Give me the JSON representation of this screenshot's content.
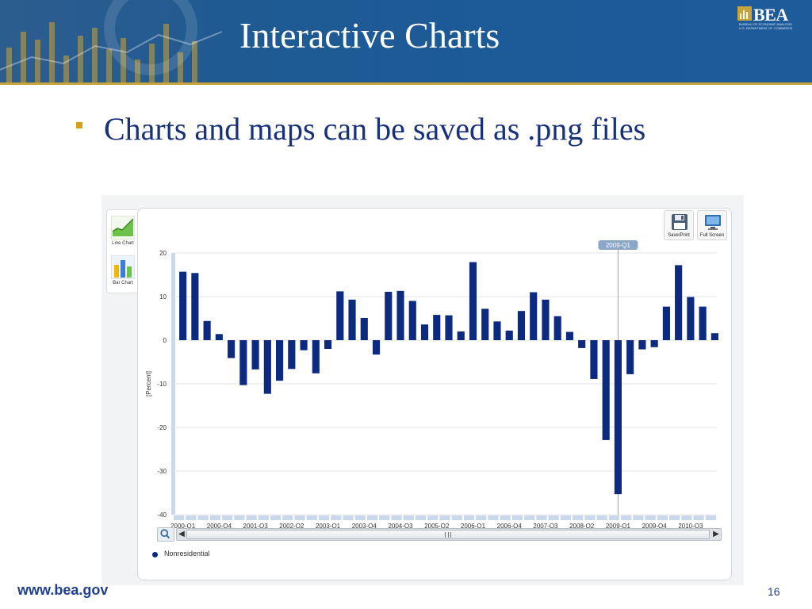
{
  "slide": {
    "title": "Interactive Charts",
    "bullet": "Charts and maps can be saved as .png files",
    "footer_url": "www.bea.gov",
    "page_number": "16"
  },
  "logo": {
    "text": "BEA",
    "subtext_line1": "BUREAU OF ECONOMIC ANALYSIS",
    "subtext_line2": "U.S. DEPARTMENT OF COMMERCE"
  },
  "side_toolbar": {
    "line_chart_label": "Line Chart",
    "bar_chart_label": "Bar Chart"
  },
  "top_toolbar": {
    "save_print_label": "Save/Print",
    "full_screen_label": "Full Screen"
  },
  "legend": {
    "series_name": "Nonresidential"
  },
  "colors": {
    "bar": "#0c2a7f",
    "title_blue": "#1c5a98",
    "accent_gold": "#d4a017",
    "text_navy": "#17317a"
  },
  "icons": [
    "line-chart-icon",
    "bar-chart-icon",
    "save-print-icon",
    "full-screen-icon",
    "zoom-icon"
  ],
  "chart_data": {
    "type": "bar",
    "ylabel": "[Percent]",
    "ylim": [
      -40,
      20
    ],
    "yticks": [
      20,
      10,
      0,
      -10,
      -20,
      -30,
      -40
    ],
    "grid": true,
    "highlight_label": "2009-Q1",
    "x_tick_labels": [
      "2000-Q1",
      "2000-Q4",
      "2001-Q3",
      "2002-Q2",
      "2003-Q1",
      "2003-Q4",
      "2004-Q3",
      "2005-Q2",
      "2006-Q1",
      "2006-Q4",
      "2007-Q3",
      "2008-Q2",
      "2009-Q1",
      "2009-Q4",
      "2010-Q3"
    ],
    "categories": [
      "2000-Q1",
      "2000-Q2",
      "2000-Q3",
      "2000-Q4",
      "2001-Q1",
      "2001-Q2",
      "2001-Q3",
      "2001-Q4",
      "2002-Q1",
      "2002-Q2",
      "2002-Q3",
      "2002-Q4",
      "2003-Q1",
      "2003-Q2",
      "2003-Q3",
      "2003-Q4",
      "2004-Q1",
      "2004-Q2",
      "2004-Q3",
      "2004-Q4",
      "2005-Q1",
      "2005-Q2",
      "2005-Q3",
      "2005-Q4",
      "2006-Q1",
      "2006-Q2",
      "2006-Q3",
      "2006-Q4",
      "2007-Q1",
      "2007-Q2",
      "2007-Q3",
      "2007-Q4",
      "2008-Q1",
      "2008-Q2",
      "2008-Q3",
      "2008-Q4",
      "2009-Q1",
      "2009-Q2",
      "2009-Q3",
      "2009-Q4",
      "2010-Q1",
      "2010-Q2",
      "2010-Q3",
      "2010-Q4",
      "2011-Q1"
    ],
    "series": [
      {
        "name": "Nonresidential",
        "values": [
          15.7,
          15.4,
          4.4,
          1.4,
          -4.1,
          -10.3,
          -6.7,
          -12.3,
          -9.3,
          -6.6,
          -2.3,
          -7.6,
          -2.0,
          11.2,
          9.3,
          5.1,
          -3.3,
          11.1,
          11.3,
          9.0,
          3.6,
          5.8,
          5.7,
          2.0,
          17.9,
          7.2,
          4.3,
          2.2,
          6.7,
          11.0,
          9.3,
          5.5,
          1.9,
          -1.8,
          -8.9,
          -22.9,
          -35.3,
          -7.8,
          -2.1,
          -1.6,
          7.7,
          17.2,
          9.9,
          7.7,
          1.6
        ]
      }
    ]
  }
}
